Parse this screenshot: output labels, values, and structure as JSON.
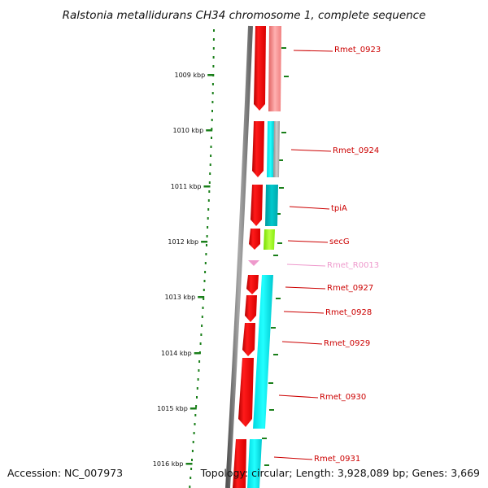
{
  "title": "Ralstonia metallidurans CH34 chromosome 1, complete sequence",
  "accession": "Accession: NC_007973",
  "topology": "Topology: circular; Length: 3,928,089 bp; Genes: 3,669",
  "colors": {
    "protein_coding": "#ff0000",
    "rna_gene": "#ee99cc",
    "cog_cyan": "#00e5ee",
    "cog_teal": "#00bfbf",
    "cog_gray": "#a8a8a8",
    "cog_green": "#99ff22",
    "cog_pink": "#f08080",
    "ticks": "#1a7f1a",
    "labels": "#cc0000"
  },
  "kbp_ticks": [
    "1009 kbp",
    "1010 kbp",
    "1011 kbp",
    "1012 kbp",
    "1013 kbp",
    "1014 kbp",
    "1015 kbp",
    "1016 kbp"
  ],
  "genes": [
    {
      "name": "Rmet_0923",
      "type": "cds",
      "cog": "pink"
    },
    {
      "name": "Rmet_0924",
      "type": "cds",
      "cog": "cyan-gray"
    },
    {
      "name": "tpiA",
      "type": "cds",
      "cog": "teal"
    },
    {
      "name": "secG",
      "type": "cds",
      "cog": "green"
    },
    {
      "name": "Rmet_R0013",
      "type": "rna",
      "cog": "none"
    },
    {
      "name": "Rmet_0927",
      "type": "cds",
      "cog": "cyan"
    },
    {
      "name": "Rmet_0928",
      "type": "cds",
      "cog": "cyan"
    },
    {
      "name": "Rmet_0929",
      "type": "cds",
      "cog": "cyan"
    },
    {
      "name": "Rmet_0930",
      "type": "cds",
      "cog": "cyan"
    },
    {
      "name": "Rmet_0931",
      "type": "cds",
      "cog": "cyan"
    }
  ]
}
